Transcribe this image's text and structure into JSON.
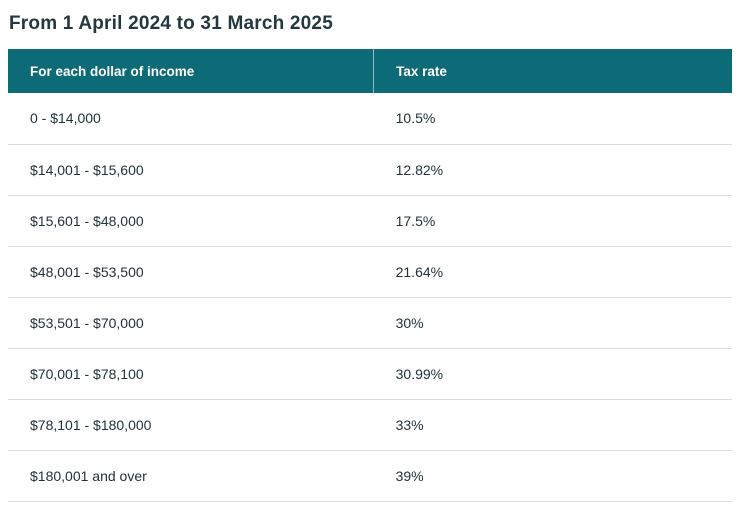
{
  "page": {
    "heading": "From 1 April 2024 to 31 March 2025"
  },
  "colors": {
    "header_bg": "#0d6b77",
    "header_text": "#ffffff",
    "heading_text": "#243840",
    "row_border": "#d9dde0"
  },
  "table": {
    "columns": [
      "For each dollar of income",
      "Tax rate"
    ],
    "rows": [
      {
        "income": "0 - $14,000",
        "rate": "10.5%"
      },
      {
        "income": "$14,001 - $15,600",
        "rate": "12.82%"
      },
      {
        "income": "$15,601 - $48,000",
        "rate": "17.5%"
      },
      {
        "income": "$48,001 - $53,500",
        "rate": "21.64%"
      },
      {
        "income": "$53,501 - $70,000",
        "rate": "30%"
      },
      {
        "income": "$70,001 - $78,100",
        "rate": "30.99%"
      },
      {
        "income": "$78,101 - $180,000",
        "rate": "33%"
      },
      {
        "income": "$180,001 and over",
        "rate": "39%"
      }
    ]
  }
}
